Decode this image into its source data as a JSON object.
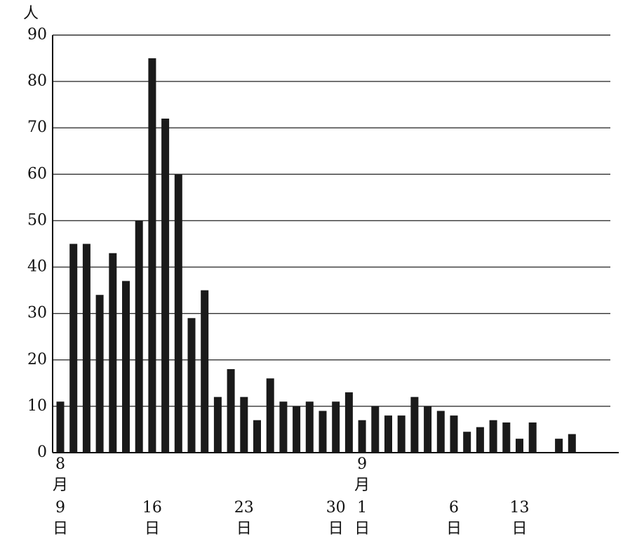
{
  "chart_data": {
    "type": "bar",
    "y_unit": "人",
    "categories": [
      "8月9日",
      null,
      null,
      null,
      null,
      null,
      null,
      "16日",
      null,
      null,
      null,
      null,
      null,
      null,
      "23日",
      null,
      null,
      null,
      null,
      null,
      null,
      "30日",
      null,
      "9月1日",
      null,
      null,
      null,
      null,
      null,
      null,
      "6日",
      null,
      null,
      null,
      null,
      "13日",
      null,
      null,
      null,
      null
    ],
    "values": [
      11,
      45,
      45,
      34,
      43,
      37,
      50,
      85,
      72,
      60,
      29,
      35,
      12,
      18,
      12,
      7,
      16,
      11,
      10,
      11,
      9,
      11,
      13,
      7,
      10,
      8,
      8,
      12,
      10,
      9,
      8,
      4.5,
      5.5,
      7,
      6.5,
      3,
      6.5,
      null,
      3,
      4
    ],
    "color": "#1a1a1a",
    "ylim": [
      0,
      90
    ],
    "yticks": [
      0,
      10,
      20,
      30,
      40,
      50,
      60,
      70,
      80,
      90
    ],
    "grid": true
  }
}
